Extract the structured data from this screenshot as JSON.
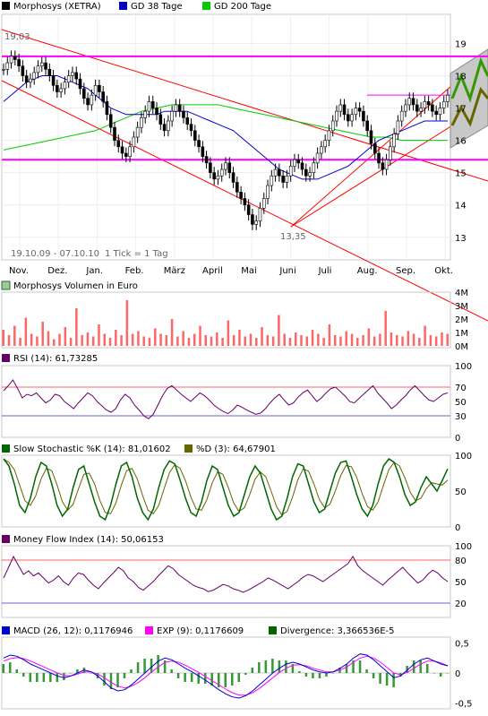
{
  "colors": {
    "price": "#000000",
    "gd38": "#0000cc",
    "gd200": "#00cc00",
    "level": "#ff00ff",
    "trend": "#ff0000",
    "volume": "#ff6666",
    "rsi": "#660066",
    "stoch_k": "#006600",
    "stoch_d": "#666600",
    "mfi": "#660066",
    "macd": "#0000cc",
    "exp": "#ff00ff",
    "divergence": "#006600",
    "grid": "#e8e8e8"
  },
  "chart_data": [
    {
      "type": "line",
      "panel": "price",
      "legend": [
        {
          "label": "Morphosys (XETRA)",
          "color": "#000000"
        },
        {
          "label": "GD 38 Tage",
          "color": "#0000cc"
        },
        {
          "label": "GD 200 Tage",
          "color": "#00cc00"
        }
      ],
      "ylim": [
        12.3,
        19.9
      ],
      "y_ticks": [
        "19",
        "18",
        "17",
        "16",
        "15",
        "14",
        "13"
      ],
      "x_ticks": [
        "Nov.",
        "Dez.",
        "Jan.",
        "Feb.",
        "März",
        "April",
        "Mai",
        "Juni",
        "Juli",
        "Aug.",
        "Sep.",
        "Okt."
      ],
      "annotations": {
        "high": "19,03",
        "low": "13,35",
        "range": "19.10.09 - 07.10.10",
        "tick": "1 Tick = 1 Tag"
      },
      "levels": [
        18.6,
        17.4,
        15.4
      ],
      "series": [
        {
          "name": "Morphosys (XETRA)",
          "values": [
            18.2,
            18.4,
            18.6,
            18.5,
            18.3,
            18.0,
            17.8,
            17.9,
            18.1,
            18.3,
            18.4,
            18.2,
            18.0,
            17.7,
            17.5,
            17.6,
            17.8,
            18.0,
            18.1,
            17.9,
            17.6,
            17.3,
            17.1,
            17.4,
            17.7,
            17.5,
            17.2,
            16.8,
            16.4,
            16.0,
            15.8,
            15.6,
            15.5,
            15.8,
            16.1,
            16.4,
            16.7,
            16.9,
            17.2,
            17.0,
            16.8,
            16.5,
            16.3,
            16.6,
            16.9,
            17.1,
            16.9,
            16.7,
            16.5,
            16.3,
            16.0,
            15.8,
            15.5,
            15.3,
            15.0,
            14.8,
            14.9,
            15.1,
            15.3,
            15.0,
            14.7,
            14.4,
            14.2,
            14.0,
            13.7,
            13.4,
            13.5,
            13.9,
            14.2,
            14.6,
            14.9,
            15.1,
            14.9,
            14.7,
            14.9,
            15.2,
            15.4,
            15.3,
            15.1,
            14.9,
            15.0,
            15.3,
            15.6,
            15.8,
            16.0,
            16.3,
            16.6,
            16.9,
            17.1,
            16.8,
            16.6,
            16.8,
            17.0,
            16.9,
            16.6,
            16.3,
            15.9,
            15.6,
            15.3,
            15.1,
            15.4,
            15.8,
            16.2,
            16.6,
            16.9,
            17.1,
            17.3,
            17.1,
            16.9,
            17.0,
            17.2,
            17.1,
            16.9,
            16.8,
            17.0,
            17.2,
            17.4
          ]
        },
        {
          "name": "GD 38 Tage",
          "values": [
            17.2,
            17.4,
            17.6,
            17.8,
            17.9,
            18.0,
            18.0,
            18.0,
            17.9,
            17.8,
            17.7,
            17.6,
            17.4,
            17.2,
            17.0,
            16.9,
            16.8,
            16.8,
            16.8,
            16.8,
            16.8,
            16.9,
            16.9,
            16.9,
            16.9,
            16.8,
            16.7,
            16.6,
            16.5,
            16.4,
            16.3,
            16.1,
            15.9,
            15.7,
            15.5,
            15.3,
            15.1,
            15.0,
            14.9,
            14.8,
            14.8,
            14.8,
            14.9,
            15.0,
            15.1,
            15.2,
            15.4,
            15.6,
            15.8,
            16.0,
            16.1,
            16.2,
            16.3,
            16.4,
            16.5,
            16.6,
            16.6,
            16.6,
            16.6
          ]
        },
        {
          "name": "GD 200 Tage",
          "values": [
            15.7,
            15.8,
            15.9,
            16.0,
            16.1,
            16.2,
            16.3,
            16.5,
            16.7,
            16.9,
            17.0,
            17.1,
            17.1,
            17.1,
            17.1,
            17.0,
            16.9,
            16.8,
            16.7,
            16.6,
            16.5,
            16.4,
            16.3,
            16.2,
            16.1,
            16.1,
            16.0,
            16.0,
            16.0,
            16.0
          ]
        }
      ]
    },
    {
      "type": "bar",
      "panel": "volume",
      "title": "Morphosys Volumen in Euro",
      "y_ticks": [
        "4M",
        "3M",
        "2M",
        "1M",
        "0M"
      ],
      "ylim": [
        0,
        4
      ],
      "values": [
        1.2,
        0.8,
        1.5,
        0.6,
        2.1,
        0.9,
        0.7,
        1.8,
        1.1,
        0.5,
        0.9,
        1.4,
        0.6,
        2.8,
        0.8,
        1.0,
        0.7,
        1.6,
        0.9,
        0.6,
        1.2,
        0.8,
        3.4,
        0.9,
        1.1,
        0.7,
        0.6,
        1.3,
        0.9,
        0.8,
        2.0,
        0.7,
        1.1,
        0.6,
        0.9,
        1.5,
        0.8,
        0.7,
        1.0,
        0.6,
        1.9,
        0.8,
        1.2,
        0.7,
        0.9,
        0.6,
        1.4,
        0.8,
        0.7,
        2.3,
        0.9,
        0.6,
        1.0,
        0.8,
        0.7,
        1.2,
        0.9,
        0.6,
        1.6,
        0.8,
        0.7,
        1.1,
        0.9,
        0.6,
        0.8,
        1.3,
        0.7,
        0.9,
        2.6,
        1.0,
        0.8,
        0.7,
        1.1,
        0.9,
        0.6,
        1.5,
        0.8,
        0.7,
        1.0,
        0.9
      ]
    },
    {
      "type": "line",
      "panel": "rsi",
      "title": "RSI (14): 61,73285",
      "y_ticks": [
        "100",
        "70",
        "50",
        "30",
        "0"
      ],
      "ylim": [
        0,
        100
      ],
      "levels": [
        70,
        30
      ],
      "values": [
        65,
        72,
        80,
        68,
        55,
        60,
        58,
        62,
        55,
        48,
        52,
        60,
        58,
        50,
        45,
        40,
        48,
        55,
        62,
        58,
        50,
        44,
        38,
        35,
        40,
        52,
        60,
        55,
        45,
        38,
        30,
        26,
        32,
        45,
        58,
        68,
        72,
        66,
        60,
        55,
        50,
        56,
        62,
        58,
        52,
        45,
        40,
        36,
        33,
        38,
        45,
        42,
        38,
        35,
        32,
        34,
        40,
        48,
        55,
        60,
        52,
        45,
        48,
        56,
        62,
        66,
        58,
        50,
        55,
        62,
        68,
        70,
        64,
        58,
        50,
        48,
        54,
        60,
        66,
        72,
        62,
        55,
        48,
        40,
        45,
        52,
        58,
        66,
        72,
        65,
        58,
        52,
        50,
        55,
        60,
        62
      ]
    },
    {
      "type": "line",
      "panel": "stochastic",
      "legend": [
        {
          "label": "Slow Stochastic %K (14): 81,01602",
          "color": "#006600"
        },
        {
          "label": "%D (3): 64,67901",
          "color": "#666600"
        }
      ],
      "y_ticks": [
        "100",
        "50",
        "0"
      ],
      "ylim": [
        0,
        100
      ],
      "values": [
        95,
        85,
        60,
        30,
        20,
        40,
        70,
        90,
        85,
        60,
        30,
        15,
        25,
        55,
        80,
        85,
        60,
        35,
        15,
        10,
        30,
        60,
        85,
        90,
        70,
        40,
        20,
        10,
        25,
        55,
        80,
        92,
        88,
        65,
        40,
        20,
        15,
        35,
        65,
        85,
        80,
        55,
        30,
        15,
        20,
        45,
        70,
        85,
        75,
        50,
        25,
        10,
        15,
        40,
        70,
        88,
        85,
        60,
        35,
        20,
        25,
        50,
        75,
        90,
        92,
        70,
        45,
        25,
        15,
        30,
        60,
        85,
        95,
        90,
        70,
        45,
        30,
        35,
        55,
        70,
        60,
        50,
        65,
        81
      ]
    },
    {
      "type": "line",
      "panel": "mfi",
      "title": "Money Flow Index (14): 50,06153",
      "y_ticks": [
        "100",
        "80",
        "50",
        "20"
      ],
      "ylim": [
        0,
        100
      ],
      "levels": [
        80,
        20
      ],
      "values": [
        55,
        70,
        85,
        72,
        60,
        65,
        58,
        62,
        55,
        48,
        52,
        58,
        50,
        45,
        55,
        62,
        60,
        52,
        45,
        40,
        48,
        55,
        62,
        70,
        65,
        55,
        50,
        42,
        38,
        44,
        50,
        58,
        65,
        72,
        68,
        60,
        55,
        50,
        45,
        42,
        40,
        36,
        38,
        42,
        46,
        44,
        40,
        38,
        35,
        38,
        42,
        46,
        50,
        55,
        52,
        48,
        44,
        40,
        45,
        50,
        56,
        60,
        58,
        54,
        50,
        55,
        60,
        65,
        70,
        75,
        85,
        72,
        65,
        60,
        55,
        50,
        45,
        52,
        58,
        64,
        70,
        62,
        55,
        48,
        52,
        60,
        66,
        62,
        55,
        50
      ]
    },
    {
      "type": "line",
      "panel": "macd",
      "legend": [
        {
          "label": "MACD (26, 12): 0,1176946",
          "color": "#0000cc"
        },
        {
          "label": "EXP (9): 0,1176609",
          "color": "#ff00ff"
        },
        {
          "label": "Divergence: 3,366536E-5",
          "color": "#006600"
        }
      ],
      "y_ticks": [
        "0,5",
        "0",
        "-0,5"
      ],
      "ylim": [
        -0.6,
        0.6
      ],
      "series": [
        {
          "name": "MACD (26, 12): 0,1176946",
          "values": [
            0.25,
            0.3,
            0.28,
            0.22,
            0.15,
            0.1,
            0.05,
            0.0,
            -0.05,
            -0.08,
            -0.05,
            0.0,
            0.05,
            0.02,
            -0.05,
            -0.15,
            -0.25,
            -0.3,
            -0.28,
            -0.2,
            -0.1,
            0.0,
            0.1,
            0.2,
            0.25,
            0.22,
            0.15,
            0.08,
            0.02,
            -0.05,
            -0.12,
            -0.2,
            -0.28,
            -0.35,
            -0.4,
            -0.42,
            -0.38,
            -0.3,
            -0.2,
            -0.1,
            0.0,
            0.08,
            0.15,
            0.18,
            0.15,
            0.1,
            0.05,
            0.02,
            0.0,
            0.02,
            0.08,
            0.15,
            0.25,
            0.32,
            0.3,
            0.22,
            0.12,
            0.02,
            -0.08,
            -0.05,
            0.05,
            0.15,
            0.22,
            0.25,
            0.2,
            0.15,
            0.12
          ]
        },
        {
          "name": "EXP (9): 0,1176609",
          "values": [
            0.2,
            0.24,
            0.26,
            0.24,
            0.2,
            0.15,
            0.1,
            0.05,
            0.0,
            -0.04,
            -0.05,
            -0.02,
            0.02,
            0.02,
            -0.02,
            -0.08,
            -0.16,
            -0.22,
            -0.25,
            -0.22,
            -0.16,
            -0.08,
            0.02,
            0.1,
            0.18,
            0.2,
            0.18,
            0.13,
            0.07,
            0.01,
            -0.06,
            -0.13,
            -0.2,
            -0.27,
            -0.33,
            -0.37,
            -0.37,
            -0.33,
            -0.26,
            -0.17,
            -0.08,
            0.01,
            0.08,
            0.13,
            0.14,
            0.12,
            0.08,
            0.05,
            0.02,
            0.02,
            0.05,
            0.1,
            0.18,
            0.25,
            0.28,
            0.25,
            0.18,
            0.09,
            0.0,
            -0.03,
            0.01,
            0.08,
            0.15,
            0.2,
            0.2,
            0.17,
            0.12
          ]
        }
      ]
    }
  ]
}
